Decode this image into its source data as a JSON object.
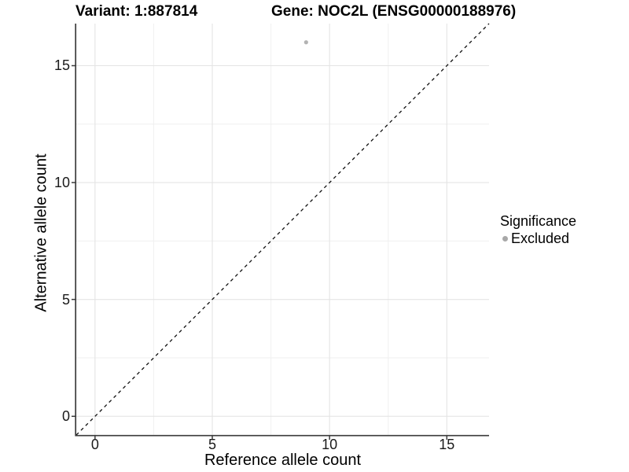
{
  "chart_data": {
    "type": "scatter",
    "title_left": "Variant: 1:887814",
    "title_right": "Gene: NOC2L (ENSG00000188976)",
    "xlabel": "Reference allele count",
    "ylabel": "Alternative allele count",
    "xlim": [
      -0.8,
      16.8
    ],
    "ylim": [
      -0.8,
      16.8
    ],
    "x_ticks": [
      0,
      5,
      10,
      15
    ],
    "y_ticks": [
      0,
      5,
      10,
      15
    ],
    "x_minor_ticks": [
      2.5,
      7.5,
      12.5
    ],
    "y_minor_ticks": [
      2.5,
      7.5,
      12.5
    ],
    "grid": "major+minor",
    "reference_line": {
      "type": "identity",
      "from": [
        -0.8,
        -0.8
      ],
      "to": [
        16.8,
        16.8
      ],
      "style": "dashed"
    },
    "series": [
      {
        "name": "Excluded",
        "marker": "circle",
        "color": "#b3b3b3",
        "points": [
          [
            9,
            16
          ]
        ]
      }
    ],
    "legend": {
      "title": "Significance",
      "position": "right",
      "entries": [
        {
          "label": "Excluded",
          "color": "#a8a8a8",
          "marker": "circle"
        }
      ]
    },
    "style": {
      "background": "#ffffff",
      "axis_color": "#3b3b3b",
      "grid_major_color": "#e4e4e4",
      "grid_minor_color": "#f1f1f1",
      "reference_line_color": "#111111",
      "text_color": "#000000"
    }
  }
}
